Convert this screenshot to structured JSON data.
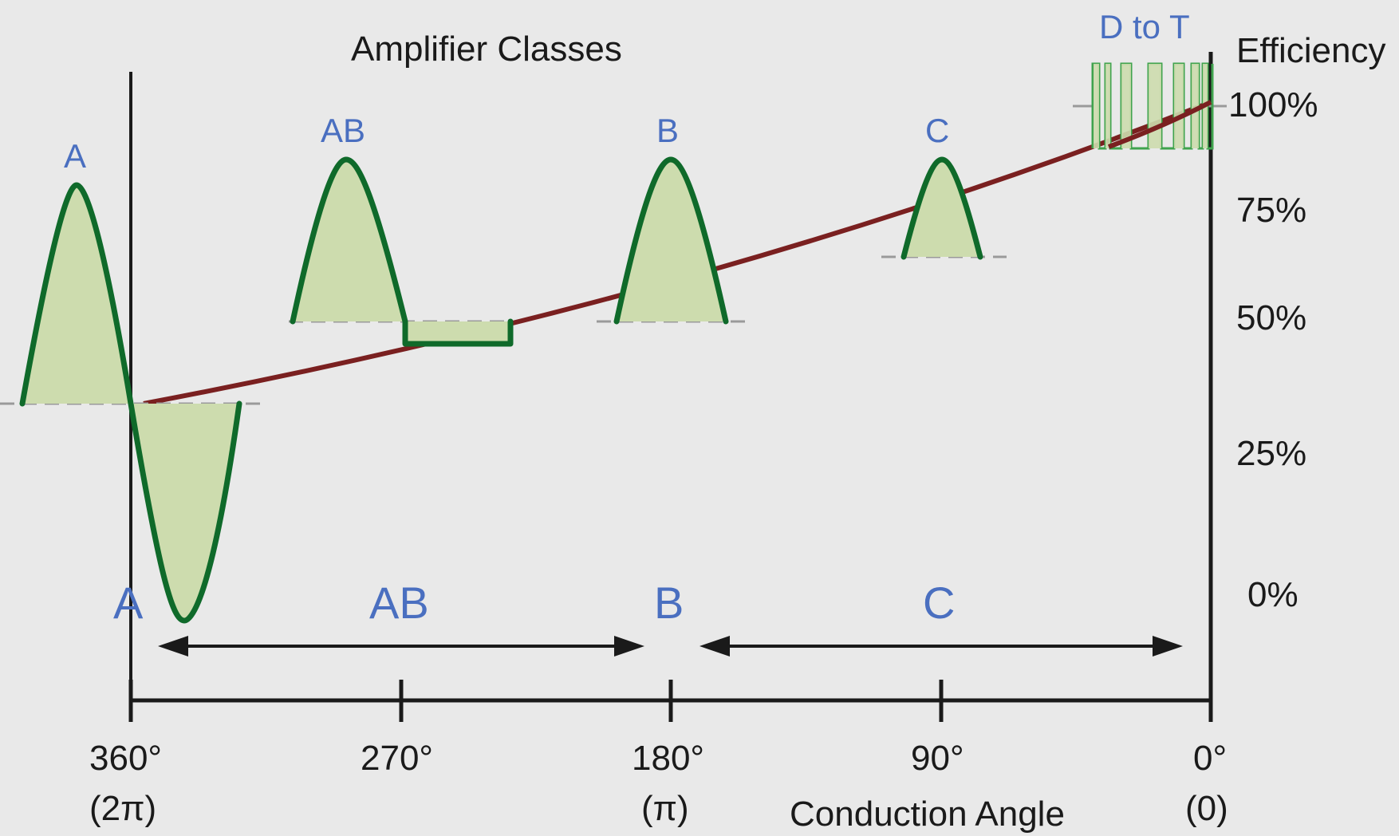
{
  "diagram": {
    "title": "Amplifier Classes",
    "efficiency_label": "Efficiency",
    "efficiency_ticks": [
      "100%",
      "75%",
      "50%",
      "25%",
      "0%"
    ],
    "wave_labels": {
      "a": "A",
      "ab": "AB",
      "b": "B",
      "c": "C",
      "d_to_t": "D to T"
    },
    "class_labels": {
      "a": "A",
      "ab": "AB",
      "b": "B",
      "c": "C"
    },
    "angles": [
      {
        "deg": "360°",
        "rad": "(2π)"
      },
      {
        "deg": "270°",
        "rad": ""
      },
      {
        "deg": "180°",
        "rad": "(π)"
      },
      {
        "deg": "90°",
        "rad": ""
      },
      {
        "deg": "0°",
        "rad": "(0)"
      }
    ],
    "x_axis_title": "Conduction Angle",
    "colors": {
      "background": "#e9e9e9",
      "wave_stroke": "#0f6a2a",
      "wave_fill": "#cddcae",
      "efficiency_curve": "#7a2020",
      "label_blue": "#4a6fc0",
      "axis": "#1a1a1a",
      "baseline_dash": "#9a9a9a"
    }
  }
}
